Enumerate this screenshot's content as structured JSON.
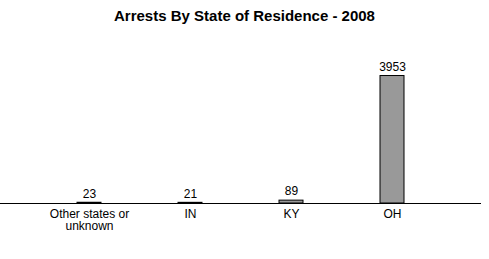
{
  "chart_data": {
    "type": "bar",
    "title": "Arrests By State of Residence - 2008",
    "categories": [
      "Other states or unknown",
      "IN",
      "KY",
      "OH"
    ],
    "values": [
      23,
      21,
      89,
      3953
    ],
    "color": "#999999",
    "ylim": [
      0,
      4000
    ],
    "data_labels": true,
    "tick_labels": "x",
    "grid": false
  }
}
